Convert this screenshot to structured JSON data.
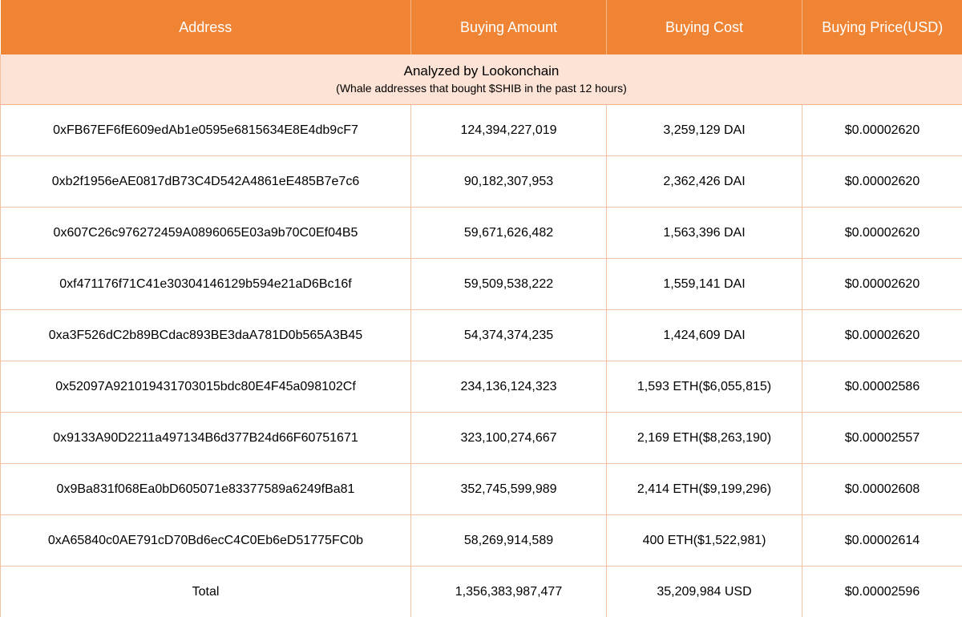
{
  "header": {
    "address": "Address",
    "amount": "Buying Amount",
    "cost": "Buying Cost",
    "price": "Buying Price(USD)"
  },
  "subtitle": {
    "title": "Analyzed by Lookonchain",
    "note": "(Whale addresses that bought $SHIB in the past 12 hours)"
  },
  "rows": [
    {
      "address": "0xFB67EF6fE609edAb1e0595e6815634E8E4db9cF7",
      "amount": "124,394,227,019",
      "cost": "3,259,129 DAI",
      "price": "$0.00002620"
    },
    {
      "address": "0xb2f1956eAE0817dB73C4D542A4861eE485B7e7c6",
      "amount": "90,182,307,953",
      "cost": "2,362,426 DAI",
      "price": "$0.00002620"
    },
    {
      "address": "0x607C26c976272459A0896065E03a9b70C0Ef04B5",
      "amount": "59,671,626,482",
      "cost": "1,563,396 DAI",
      "price": "$0.00002620"
    },
    {
      "address": "0xf471176f71C41e30304146129b594e21aD6Bc16f",
      "amount": "59,509,538,222",
      "cost": "1,559,141 DAI",
      "price": "$0.00002620"
    },
    {
      "address": "0xa3F526dC2b89BCdac893BE3daA781D0b565A3B45",
      "amount": "54,374,374,235",
      "cost": "1,424,609 DAI",
      "price": "$0.00002620"
    },
    {
      "address": "0x52097A921019431703015bdc80E4F45a098102Cf",
      "amount": "234,136,124,323",
      "cost": "1,593 ETH($6,055,815)",
      "price": "$0.00002586"
    },
    {
      "address": "0x9133A90D2211a497134B6d377B24d66F60751671",
      "amount": "323,100,274,667",
      "cost": "2,169 ETH($8,263,190)",
      "price": "$0.00002557"
    },
    {
      "address": "0x9Ba831f068Ea0bD605071e83377589a6249fBa81",
      "amount": "352,745,599,989",
      "cost": "2,414 ETH($9,199,296)",
      "price": "$0.00002608"
    },
    {
      "address": "0xA65840c0AE791cD70Bd6ecC4C0Eb6eD51775FC0b",
      "amount": "58,269,914,589",
      "cost": "400 ETH($1,522,981)",
      "price": "$0.00002614"
    }
  ],
  "total": {
    "label": "Total",
    "amount": "1,356,383,987,477",
    "cost": "35,209,984 USD",
    "price": "$0.00002596"
  }
}
